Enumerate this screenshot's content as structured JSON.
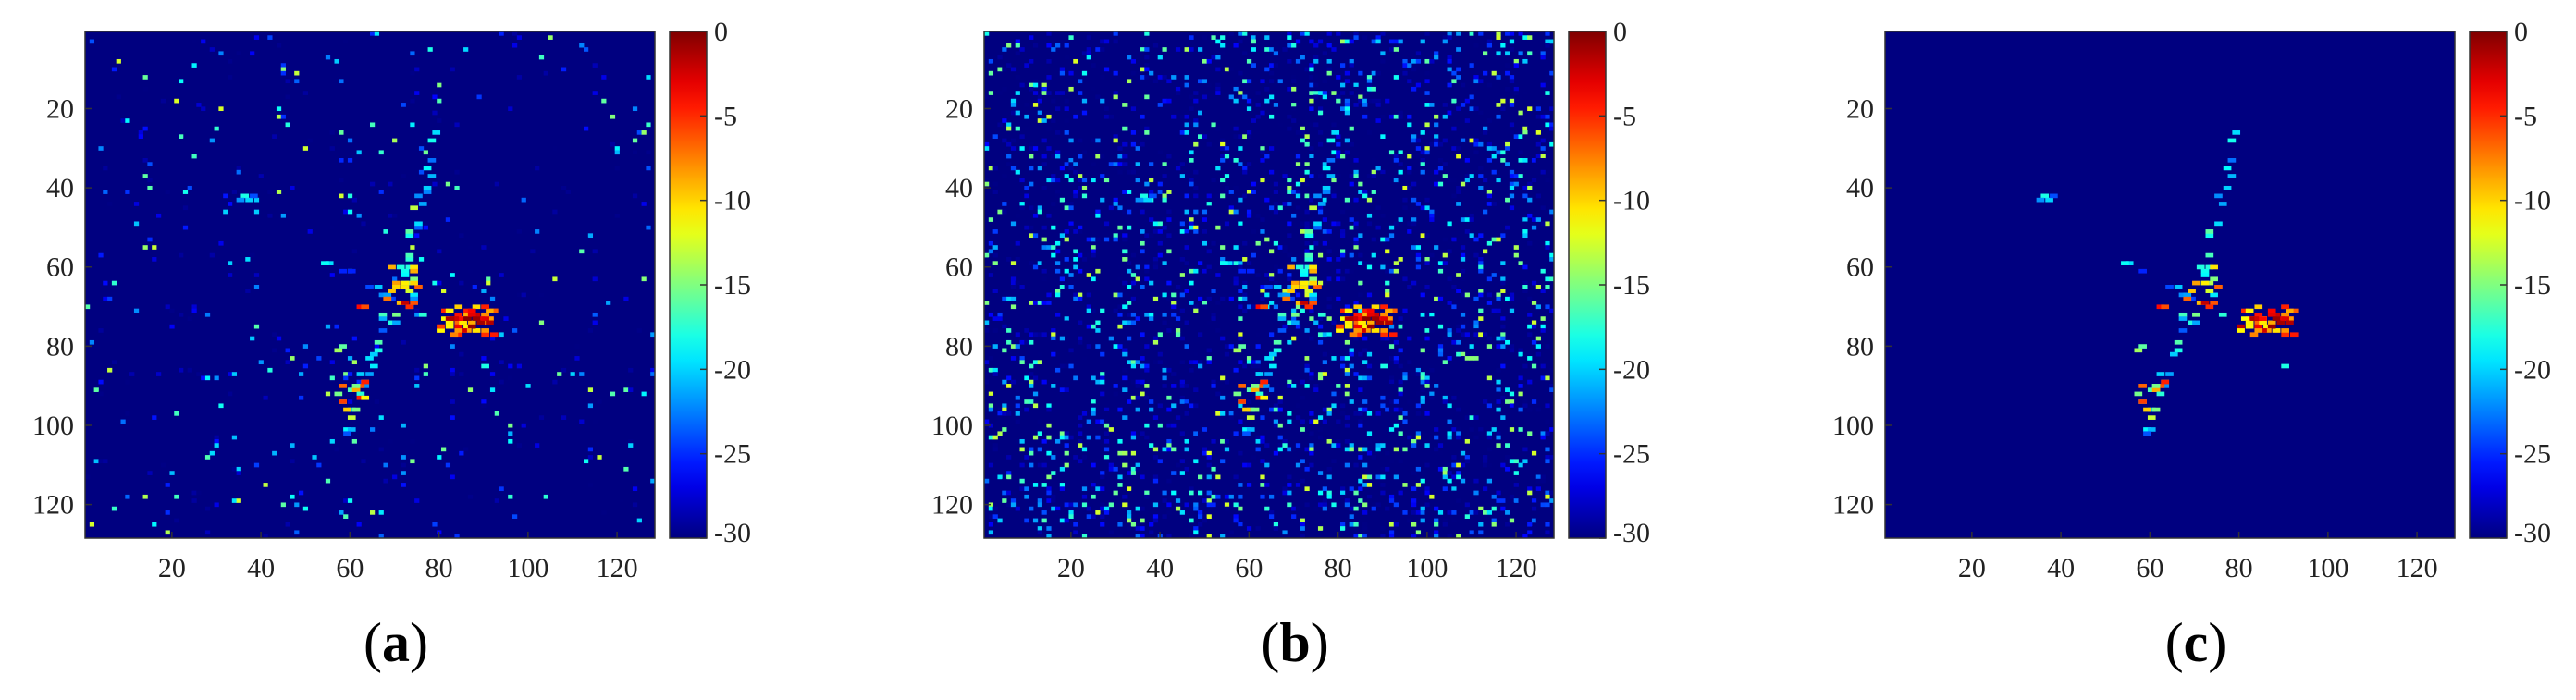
{
  "chart_data": [
    {
      "type": "heatmap",
      "panel_label": "a",
      "x_ticks": [
        20,
        40,
        60,
        80,
        100,
        120
      ],
      "y_ticks": [
        20,
        40,
        60,
        80,
        100,
        120
      ],
      "xlim": [
        0,
        128
      ],
      "ylim": [
        0,
        128
      ],
      "colorbar": {
        "min": -30,
        "max": 0,
        "ticks": [
          0,
          -5,
          -10,
          -15,
          -20,
          -25,
          -30
        ],
        "colormap": "jet"
      },
      "background_level": -30,
      "noise_density": 0.03,
      "target_scale": 1.0
    },
    {
      "type": "heatmap",
      "panel_label": "b",
      "x_ticks": [
        20,
        40,
        60,
        80,
        100,
        120
      ],
      "y_ticks": [
        20,
        40,
        60,
        80,
        100,
        120
      ],
      "xlim": [
        0,
        128
      ],
      "ylim": [
        0,
        128
      ],
      "colorbar": {
        "min": -30,
        "max": 0,
        "ticks": [
          0,
          -5,
          -10,
          -15,
          -20,
          -25,
          -30
        ],
        "colormap": "jet"
      },
      "background_level": -30,
      "noise_density": 0.17,
      "target_scale": 1.0
    },
    {
      "type": "heatmap",
      "panel_label": "c",
      "x_ticks": [
        20,
        40,
        60,
        80,
        100,
        120
      ],
      "y_ticks": [
        20,
        40,
        60,
        80,
        100,
        120
      ],
      "xlim": [
        0,
        128
      ],
      "ylim": [
        0,
        128
      ],
      "colorbar": {
        "min": -30,
        "max": 0,
        "ticks": [
          0,
          -5,
          -10,
          -15,
          -20,
          -25,
          -30
        ],
        "colormap": "jet"
      },
      "background_level": -30,
      "noise_density": 0.0,
      "target_scale": 0.85
    }
  ]
}
